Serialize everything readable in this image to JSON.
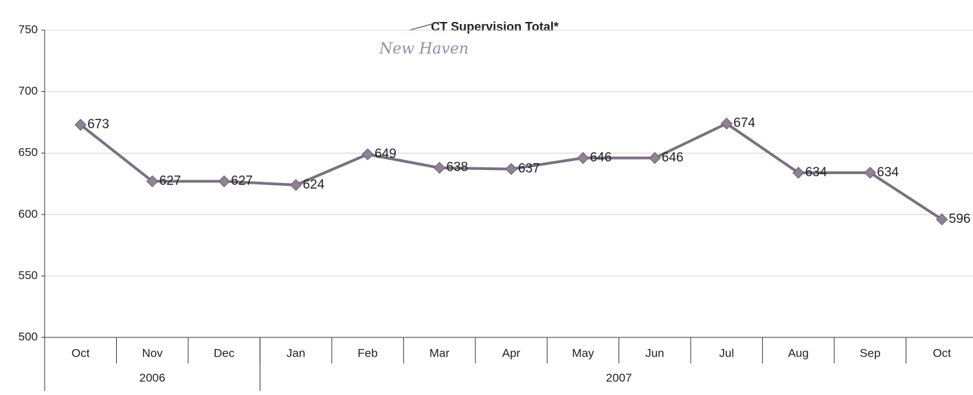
{
  "chart_data": {
    "type": "line",
    "title": "CT Supervision Total*",
    "annotation": "New Haven",
    "categories": [
      "Oct",
      "Nov",
      "Dec",
      "Jan",
      "Feb",
      "Mar",
      "Apr",
      "May",
      "Jun",
      "Jul",
      "Aug",
      "Sep",
      "Oct"
    ],
    "groups": [
      {
        "label": "2006",
        "count": 3
      },
      {
        "label": "2007",
        "count": 10
      }
    ],
    "values": [
      673,
      627,
      627,
      624,
      649,
      638,
      637,
      646,
      646,
      674,
      634,
      634,
      596
    ],
    "color": "#7b6f82",
    "marker_color": "#8e8294",
    "ylim": [
      500,
      750
    ],
    "yticks": [
      500,
      550,
      600,
      650,
      700,
      750
    ],
    "grid": true
  }
}
